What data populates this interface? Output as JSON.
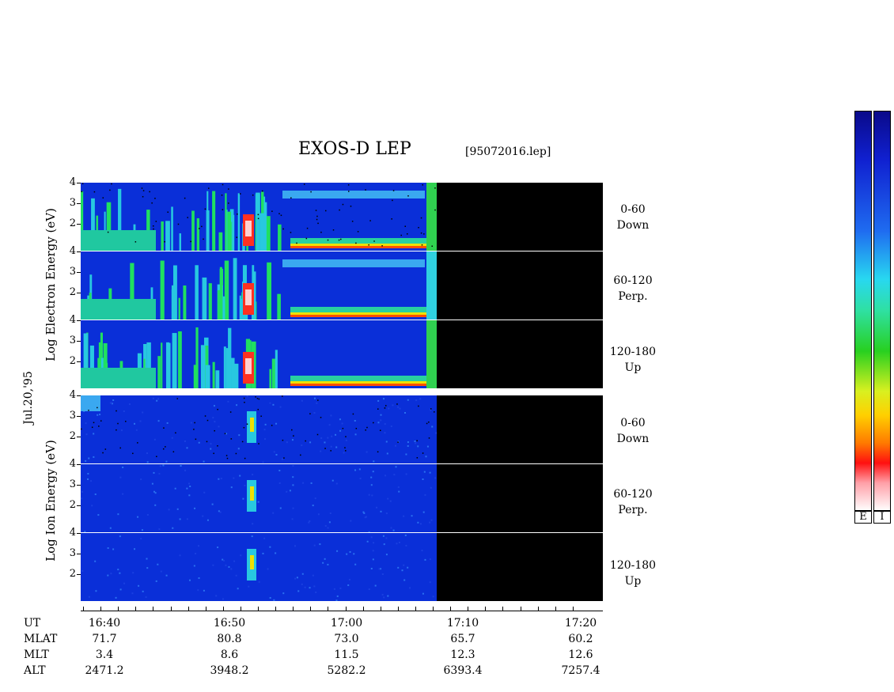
{
  "title": "EXOS-D LEP",
  "filename": "[95072016.lep]",
  "date_label": "Jul.20,'95",
  "electron_label": "Log  Electron  Energy (eV)",
  "ion_label": "Log   Ion  Energy (eV)",
  "electron_panels": [
    {
      "pitch": "0-60",
      "dir": "Down"
    },
    {
      "pitch": "60-120",
      "dir": "Perp."
    },
    {
      "pitch": "120-180",
      "dir": "Up"
    }
  ],
  "ion_panels": [
    {
      "pitch": "0-60",
      "dir": "Down"
    },
    {
      "pitch": "60-120",
      "dir": "Perp."
    },
    {
      "pitch": "120-180",
      "dir": "Up"
    }
  ],
  "colorbars": [
    {
      "label": "E"
    },
    {
      "label": "I"
    }
  ],
  "colors": {
    "background_fill": "#0a2fd8",
    "no_data": "#000000"
  },
  "chart_data": {
    "type": "heatmap",
    "title": "EXOS-D LEP",
    "xlabel": "UT",
    "x_ticks": [
      "16:40",
      "16:50",
      "17:00",
      "17:10",
      "17:20"
    ],
    "y_ticks": [
      "4",
      "3",
      "2"
    ],
    "ylim": [
      1,
      4
    ],
    "data_end_time": "17:08",
    "rows": [
      {
        "name": "UT",
        "values": [
          "16:40",
          "16:50",
          "17:00",
          "17:10",
          "17:20"
        ]
      },
      {
        "name": "MLAT",
        "values": [
          "71.7",
          "80.8",
          "73.0",
          "65.7",
          "60.2"
        ]
      },
      {
        "name": "MLT",
        "values": [
          "3.4",
          "8.6",
          "11.5",
          "12.3",
          "12.6"
        ]
      },
      {
        "name": "ALT",
        "values": [
          "2471.2",
          "3948.2",
          "5282.2",
          "6393.4",
          "7257.4"
        ]
      }
    ]
  }
}
